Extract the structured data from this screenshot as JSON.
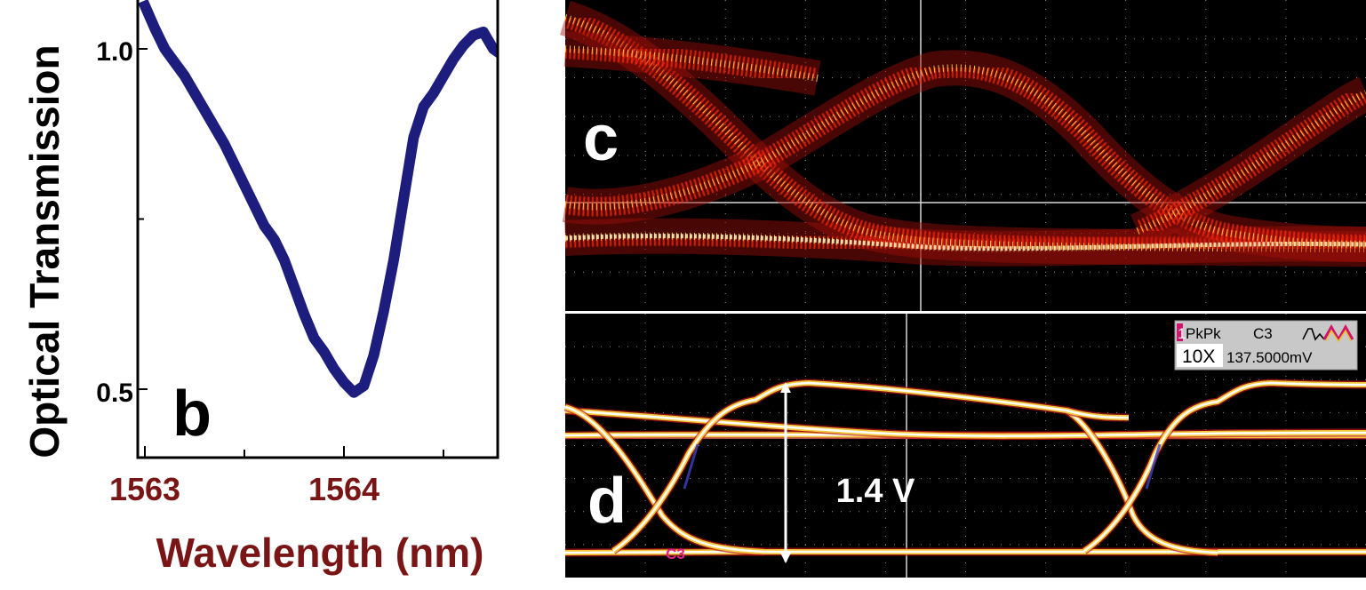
{
  "panel_b": {
    "label": "b",
    "ylabel": "Optical Transmission",
    "xlabel": "Wavelength (nm)",
    "yticks": [
      "1.0",
      "0.5"
    ],
    "xticks": [
      "1563",
      "1564"
    ]
  },
  "panel_c": {
    "label": "c"
  },
  "panel_d": {
    "label": "d",
    "amplitude_label": "1.4 V",
    "channel_marker": "C3",
    "readout": {
      "index": "1",
      "measure": "PkPk",
      "channel": "C3",
      "probe": "10X",
      "value": "137.5000mV"
    }
  },
  "colors": {
    "trace": "#1c1d7c",
    "xaxis_text": "#7a1515",
    "scope_bg": "#000000",
    "eye_hot": "#ff2a10",
    "eye_warm": "#ffd050",
    "eye_core": "#ffffff",
    "readout_accent": "#d0146e",
    "channel_marker": "#e0208a"
  },
  "chart_data": [
    {
      "type": "line",
      "title": "",
      "xlabel": "Wavelength (nm)",
      "ylabel": "Optical Transmission",
      "xlim": [
        1563,
        1564.8
      ],
      "ylim": [
        0.44,
        1.07
      ],
      "grid": false,
      "series": [
        {
          "x": [
            1562.99,
            1563.05,
            1563.1,
            1563.15,
            1563.2,
            1563.25,
            1563.3,
            1563.35,
            1563.4,
            1563.45,
            1563.5,
            1563.55,
            1563.6,
            1563.65,
            1563.7,
            1563.75,
            1563.8,
            1563.85,
            1563.9,
            1563.95,
            1564.0,
            1564.05,
            1564.1,
            1564.15,
            1564.2,
            1564.25,
            1564.3,
            1564.35,
            1564.4,
            1564.45,
            1564.5,
            1564.55,
            1564.6,
            1564.65,
            1564.7,
            1564.75,
            1564.8
          ],
          "values": [
            1.07,
            1.03,
            1.0,
            0.98,
            0.96,
            0.935,
            0.91,
            0.885,
            0.86,
            0.83,
            0.8,
            0.77,
            0.74,
            0.72,
            0.69,
            0.65,
            0.61,
            0.575,
            0.555,
            0.53,
            0.51,
            0.495,
            0.505,
            0.55,
            0.615,
            0.69,
            0.78,
            0.87,
            0.915,
            0.935,
            0.96,
            0.985,
            1.005,
            1.02,
            1.025,
            1.0,
            0.99
          ]
        }
      ]
    }
  ]
}
